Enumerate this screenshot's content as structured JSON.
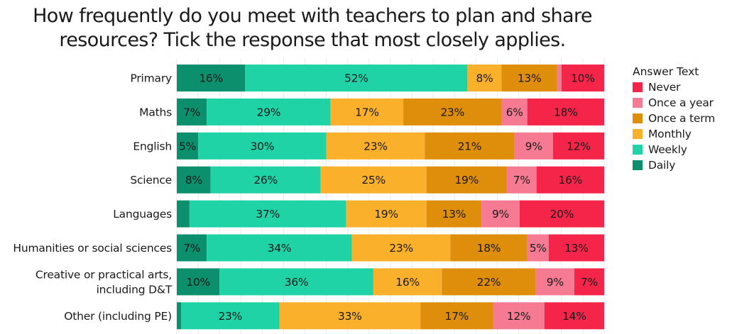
{
  "chart_data": {
    "type": "bar",
    "orientation": "horizontal",
    "stacked": true,
    "title_lines": [
      "How frequently do you meet with teachers to plan and share",
      "resources? Tick the response that most closely applies."
    ],
    "categories": [
      "Primary",
      "Maths",
      "English",
      "Science",
      "Languages",
      "Humanities or social sciences",
      "Creative or practical arts, including D&T",
      "Other (including PE)"
    ],
    "category_label_lines": [
      [
        "Primary"
      ],
      [
        "Maths"
      ],
      [
        "English"
      ],
      [
        "Science"
      ],
      [
        "Languages"
      ],
      [
        "Humanities or social sciences"
      ],
      [
        "Creative or practical arts,",
        "including D&T"
      ],
      [
        "Other (including PE)"
      ]
    ],
    "series": [
      {
        "name": "Daily",
        "color": "#0b8f6d",
        "values": [
          16,
          7,
          5,
          8,
          3,
          7,
          10,
          1
        ]
      },
      {
        "name": "Weekly",
        "color": "#1fd3a6",
        "values": [
          52,
          29,
          30,
          26,
          37,
          34,
          36,
          23
        ]
      },
      {
        "name": "Monthly",
        "color": "#fbb02b",
        "values": [
          8,
          17,
          23,
          25,
          19,
          23,
          16,
          33
        ]
      },
      {
        "name": "Once a term",
        "color": "#de8e0a",
        "values": [
          13,
          23,
          21,
          19,
          13,
          18,
          22,
          17
        ]
      },
      {
        "name": "Once a year",
        "color": "#f67a92",
        "values": [
          1,
          6,
          9,
          7,
          9,
          5,
          9,
          12
        ]
      },
      {
        "name": "Never",
        "color": "#f5254a",
        "values": [
          10,
          18,
          12,
          16,
          20,
          13,
          7,
          14
        ]
      }
    ],
    "data_labels": [
      [
        "16%",
        "7%",
        "5%",
        "8%",
        "",
        "7%",
        "10%",
        ""
      ],
      [
        "52%",
        "29%",
        "30%",
        "26%",
        "37%",
        "34%",
        "36%",
        "23%"
      ],
      [
        "8%",
        "17%",
        "23%",
        "25%",
        "19%",
        "23%",
        "16%",
        "33%"
      ],
      [
        "13%",
        "23%",
        "21%",
        "19%",
        "13%",
        "18%",
        "22%",
        "17%"
      ],
      [
        "",
        "6%",
        "9%",
        "7%",
        "9%",
        "5%",
        "9%",
        "12%"
      ],
      [
        "10%",
        "18%",
        "12%",
        "16%",
        "20%",
        "13%",
        "7%",
        "14%"
      ]
    ],
    "xlim": [
      0,
      100
    ],
    "x_unit": "%",
    "grid": true,
    "legend_position": "right",
    "legend": {
      "title": "Answer Text",
      "items": [
        {
          "label": "Never",
          "color": "#f5254a"
        },
        {
          "label": "Once a year",
          "color": "#f67a92"
        },
        {
          "label": "Once a term",
          "color": "#de8e0a"
        },
        {
          "label": "Monthly",
          "color": "#fbb02b"
        },
        {
          "label": "Weekly",
          "color": "#1fd3a6"
        },
        {
          "label": "Daily",
          "color": "#0b8f6d"
        }
      ]
    }
  }
}
